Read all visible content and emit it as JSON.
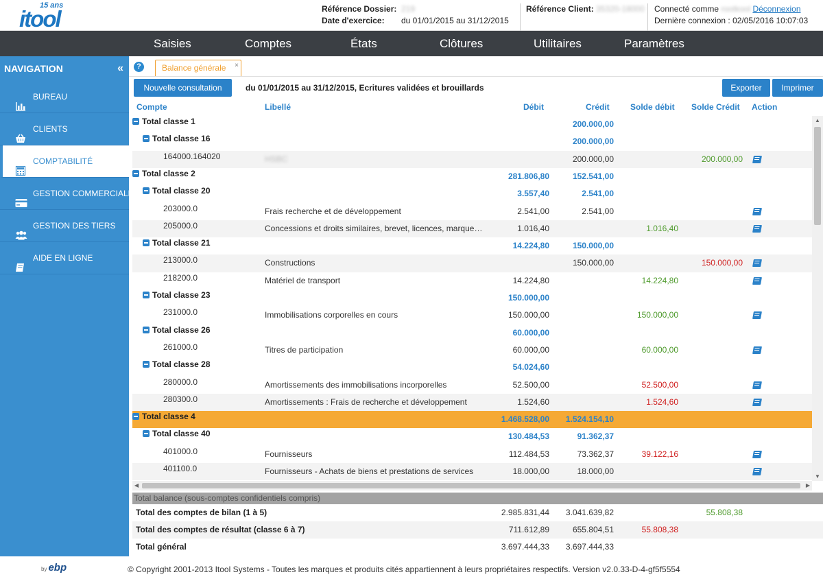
{
  "header": {
    "logo_badge": "15 ans",
    "logo_text": "itool",
    "ref_dossier_label": "Référence Dossier:",
    "ref_dossier_value": "219",
    "date_exercice_label": "Date d'exercice:",
    "date_exercice_value": "du 01/01/2015 au 31/12/2015",
    "ref_client_label": "Référence Client:",
    "ref_client_value": "35320-18000",
    "connected_label": "Connecté comme",
    "connected_user": "rootkool",
    "logout": "Déconnexion",
    "last_login": "Dernière connexion : 02/05/2016 10:07:03"
  },
  "topnav": [
    "Saisies",
    "Comptes",
    "États",
    "Clôtures",
    "Utilitaires",
    "Paramètres"
  ],
  "sidebar": {
    "title": "NAVIGATION",
    "collapse_icon": "«",
    "items": [
      {
        "label": "BUREAU",
        "icon": "bar-chart-icon"
      },
      {
        "label": "CLIENTS",
        "icon": "basket-icon"
      },
      {
        "label": "COMPTABILITÉ",
        "icon": "calculator-icon"
      },
      {
        "label": "GESTION COMMERCIALE",
        "icon": "credit-card-icon"
      },
      {
        "label": "GESTION DES TIERS",
        "icon": "users-icon"
      },
      {
        "label": "AIDE EN LIGNE",
        "icon": "book-icon"
      }
    ]
  },
  "tab": {
    "label": "Balance générale",
    "close": "×"
  },
  "toolbar": {
    "new_query": "Nouvelle consultation",
    "period": "du 01/01/2015 au 31/12/2015, Ecritures validées et brouillards",
    "export": "Exporter",
    "print": "Imprimer"
  },
  "columns": [
    "Compte",
    "Libellé",
    "Débit",
    "Crédit",
    "Solde débit",
    "Solde Crédit",
    "Action"
  ],
  "rows": [
    {
      "lvl": 1,
      "compte": "Total classe 1",
      "libelle": "",
      "debit": "",
      "credit": "200.000,00",
      "sd": "",
      "sc": "",
      "action": false
    },
    {
      "lvl": 2,
      "compte": "Total classe 16",
      "libelle": "",
      "debit": "",
      "credit": "200.000,00",
      "sd": "",
      "sc": "",
      "action": false
    },
    {
      "lvl": 3,
      "compte": "164000.164020",
      "libelle": "HSBC",
      "debit": "",
      "credit": "200.000,00",
      "sd": "",
      "sc": "200.000,00",
      "action": true
    },
    {
      "lvl": 1,
      "compte": "Total classe 2",
      "libelle": "",
      "debit": "281.806,80",
      "credit": "152.541,00",
      "sd": "",
      "sc": "",
      "action": false
    },
    {
      "lvl": 2,
      "compte": "Total classe 20",
      "libelle": "",
      "debit": "3.557,40",
      "credit": "2.541,00",
      "sd": "",
      "sc": "",
      "action": false
    },
    {
      "lvl": 3,
      "compte": "203000.0",
      "libelle": "Frais recherche et de développement",
      "debit": "2.541,00",
      "credit": "2.541,00",
      "sd": "",
      "sc": "",
      "action": true
    },
    {
      "lvl": 3,
      "compte": "205000.0",
      "libelle": "Concessions et droits similaires, brevet, licences, marque…",
      "debit": "1.016,40",
      "credit": "",
      "sd": "1.016,40",
      "sc": "",
      "action": true
    },
    {
      "lvl": 2,
      "compte": "Total classe 21",
      "libelle": "",
      "debit": "14.224,80",
      "credit": "150.000,00",
      "sd": "",
      "sc": "",
      "action": false
    },
    {
      "lvl": 3,
      "compte": "213000.0",
      "libelle": "Constructions",
      "debit": "",
      "credit": "150.000,00",
      "sd": "",
      "sc": "150.000,00",
      "sc_red": true,
      "action": true
    },
    {
      "lvl": 3,
      "compte": "218200.0",
      "libelle": "Matériel de transport",
      "debit": "14.224,80",
      "credit": "",
      "sd": "14.224,80",
      "sc": "",
      "action": true
    },
    {
      "lvl": 2,
      "compte": "Total classe 23",
      "libelle": "",
      "debit": "150.000,00",
      "credit": "",
      "sd": "",
      "sc": "",
      "action": false
    },
    {
      "lvl": 3,
      "compte": "231000.0",
      "libelle": "Immobilisations corporelles en cours",
      "debit": "150.000,00",
      "credit": "",
      "sd": "150.000,00",
      "sc": "",
      "action": true
    },
    {
      "lvl": 2,
      "compte": "Total classe 26",
      "libelle": "",
      "debit": "60.000,00",
      "credit": "",
      "sd": "",
      "sc": "",
      "action": false
    },
    {
      "lvl": 3,
      "compte": "261000.0",
      "libelle": "Titres de participation",
      "debit": "60.000,00",
      "credit": "",
      "sd": "60.000,00",
      "sc": "",
      "action": true
    },
    {
      "lvl": 2,
      "compte": "Total classe 28",
      "libelle": "",
      "debit": "54.024,60",
      "credit": "",
      "sd": "",
      "sc": "",
      "action": false
    },
    {
      "lvl": 3,
      "compte": "280000.0",
      "libelle": "Amortissements des immobilisations incorporelles",
      "debit": "52.500,00",
      "credit": "",
      "sd": "52.500,00",
      "sd_red": true,
      "sc": "",
      "action": true
    },
    {
      "lvl": 3,
      "compte": "280300.0",
      "libelle": "Amortissements : Frais de recherche et développement",
      "debit": "1.524,60",
      "credit": "",
      "sd": "1.524,60",
      "sd_red": true,
      "sc": "",
      "action": true
    },
    {
      "lvl": 1,
      "compte": "Total classe 4",
      "libelle": "",
      "debit": "1.468.528,00",
      "credit": "1.524.154,10",
      "sd": "",
      "sc": "",
      "action": false,
      "selected": true
    },
    {
      "lvl": 2,
      "compte": "Total classe 40",
      "libelle": "",
      "debit": "130.484,53",
      "credit": "91.362,37",
      "sd": "",
      "sc": "",
      "action": false
    },
    {
      "lvl": 3,
      "compte": "401000.0",
      "libelle": "Fournisseurs",
      "debit": "112.484,53",
      "credit": "73.362,37",
      "sd": "39.122,16",
      "sd_red": true,
      "sc": "",
      "action": true
    },
    {
      "lvl": 3,
      "compte": "401100.0",
      "libelle": "Fournisseurs - Achats de biens et prestations de services",
      "debit": "18.000,00",
      "credit": "18.000,00",
      "sd": "",
      "sc": "",
      "action": true
    }
  ],
  "totals": {
    "bar": "Total balance (sous-comptes confidentiels compris)",
    "rows": [
      {
        "label": "Total des comptes de bilan (1 à 5)",
        "debit": "2.985.831,44",
        "credit": "3.041.639,82",
        "sd": "",
        "sc": "55.808,38"
      },
      {
        "label": "Total des comptes de résultat (classe 6 à 7)",
        "debit": "711.612,89",
        "credit": "655.804,51",
        "sd": "55.808,38",
        "sc": ""
      },
      {
        "label": "Total général",
        "debit": "3.697.444,33",
        "credit": "3.697.444,33",
        "sd": "",
        "sc": ""
      }
    ]
  },
  "footer": {
    "by": "by",
    "ebp": "ebp",
    "copyright": "© Copyright 2001-2013 Itool Systems - Toutes les marques et produits cités appartiennent à leurs propriétaires respectifs. Version v2.0.33-D-4-gf5f5554"
  }
}
